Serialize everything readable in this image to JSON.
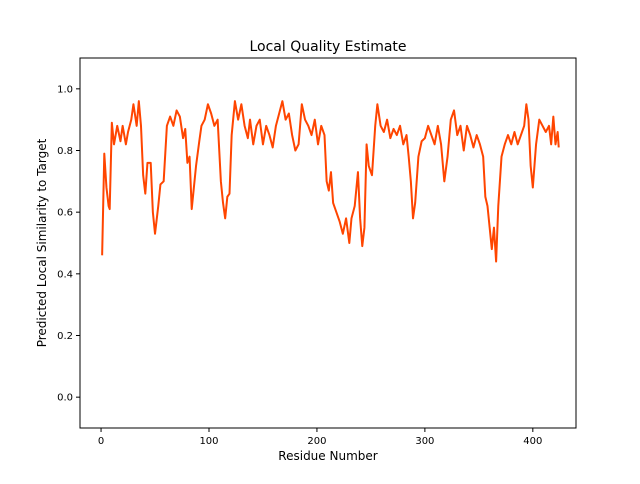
{
  "chart_data": {
    "type": "line",
    "title": "Local Quality Estimate",
    "xlabel": "Residue Number",
    "ylabel": "Predicted Local Similarity to Target",
    "x": [
      1,
      3,
      5,
      7,
      8,
      10,
      12,
      15,
      18,
      20,
      23,
      25,
      28,
      30,
      33,
      35,
      37,
      39,
      41,
      43,
      46,
      48,
      50,
      53,
      55,
      58,
      61,
      64,
      67,
      70,
      73,
      76,
      78,
      80,
      82,
      84,
      86,
      88,
      91,
      93,
      96,
      99,
      102,
      105,
      108,
      111,
      113,
      115,
      117,
      119,
      121,
      124,
      127,
      130,
      133,
      136,
      138,
      141,
      144,
      147,
      150,
      153,
      156,
      159,
      162,
      165,
      168,
      171,
      174,
      177,
      180,
      183,
      186,
      189,
      192,
      195,
      198,
      201,
      204,
      207,
      209,
      211,
      213,
      215,
      218,
      221,
      224,
      227,
      230,
      232,
      235,
      238,
      240,
      242,
      244,
      246,
      248,
      251,
      254,
      256,
      259,
      262,
      265,
      268,
      271,
      274,
      277,
      280,
      283,
      285,
      287,
      289,
      291,
      294,
      297,
      300,
      303,
      306,
      309,
      312,
      315,
      318,
      321,
      324,
      327,
      330,
      333,
      336,
      339,
      342,
      345,
      348,
      351,
      354,
      356,
      358,
      360,
      362,
      364,
      366,
      368,
      371,
      374,
      377,
      380,
      383,
      386,
      389,
      392,
      394,
      396,
      398,
      400,
      403,
      406,
      409,
      412,
      415,
      417,
      419,
      421,
      423,
      424
    ],
    "series": [
      {
        "name": "Local Quality",
        "color": "#ff4500",
        "values": [
          0.46,
          0.79,
          0.68,
          0.62,
          0.61,
          0.89,
          0.82,
          0.88,
          0.83,
          0.88,
          0.82,
          0.86,
          0.9,
          0.95,
          0.88,
          0.96,
          0.88,
          0.72,
          0.66,
          0.76,
          0.76,
          0.6,
          0.53,
          0.62,
          0.69,
          0.7,
          0.88,
          0.91,
          0.88,
          0.93,
          0.91,
          0.84,
          0.87,
          0.76,
          0.78,
          0.61,
          0.68,
          0.75,
          0.83,
          0.88,
          0.9,
          0.95,
          0.92,
          0.88,
          0.9,
          0.7,
          0.63,
          0.58,
          0.65,
          0.66,
          0.85,
          0.96,
          0.9,
          0.95,
          0.88,
          0.84,
          0.9,
          0.82,
          0.88,
          0.9,
          0.82,
          0.88,
          0.85,
          0.81,
          0.88,
          0.92,
          0.96,
          0.9,
          0.92,
          0.85,
          0.8,
          0.82,
          0.95,
          0.9,
          0.88,
          0.85,
          0.9,
          0.82,
          0.88,
          0.85,
          0.7,
          0.67,
          0.73,
          0.63,
          0.6,
          0.57,
          0.53,
          0.58,
          0.5,
          0.58,
          0.62,
          0.73,
          0.58,
          0.49,
          0.55,
          0.82,
          0.75,
          0.72,
          0.88,
          0.95,
          0.88,
          0.86,
          0.9,
          0.84,
          0.87,
          0.85,
          0.88,
          0.82,
          0.85,
          0.78,
          0.7,
          0.58,
          0.63,
          0.78,
          0.83,
          0.84,
          0.88,
          0.85,
          0.82,
          0.88,
          0.82,
          0.7,
          0.78,
          0.9,
          0.93,
          0.85,
          0.88,
          0.8,
          0.88,
          0.85,
          0.81,
          0.85,
          0.82,
          0.78,
          0.65,
          0.62,
          0.55,
          0.48,
          0.55,
          0.44,
          0.62,
          0.78,
          0.82,
          0.85,
          0.82,
          0.86,
          0.82,
          0.85,
          0.88,
          0.95,
          0.9,
          0.75,
          0.68,
          0.82,
          0.9,
          0.88,
          0.86,
          0.88,
          0.82,
          0.91,
          0.82,
          0.86,
          0.81
        ]
      }
    ],
    "xlim": [
      -19.5,
      440
    ],
    "ylim": [
      -0.1,
      1.1
    ],
    "xticks": [
      0,
      100,
      200,
      300,
      400
    ],
    "yticks": [
      {
        "value": 0,
        "label": "0.0"
      },
      0.2,
      0.4,
      0.6,
      0.8,
      {
        "value": 1,
        "label": "1.0"
      }
    ]
  }
}
